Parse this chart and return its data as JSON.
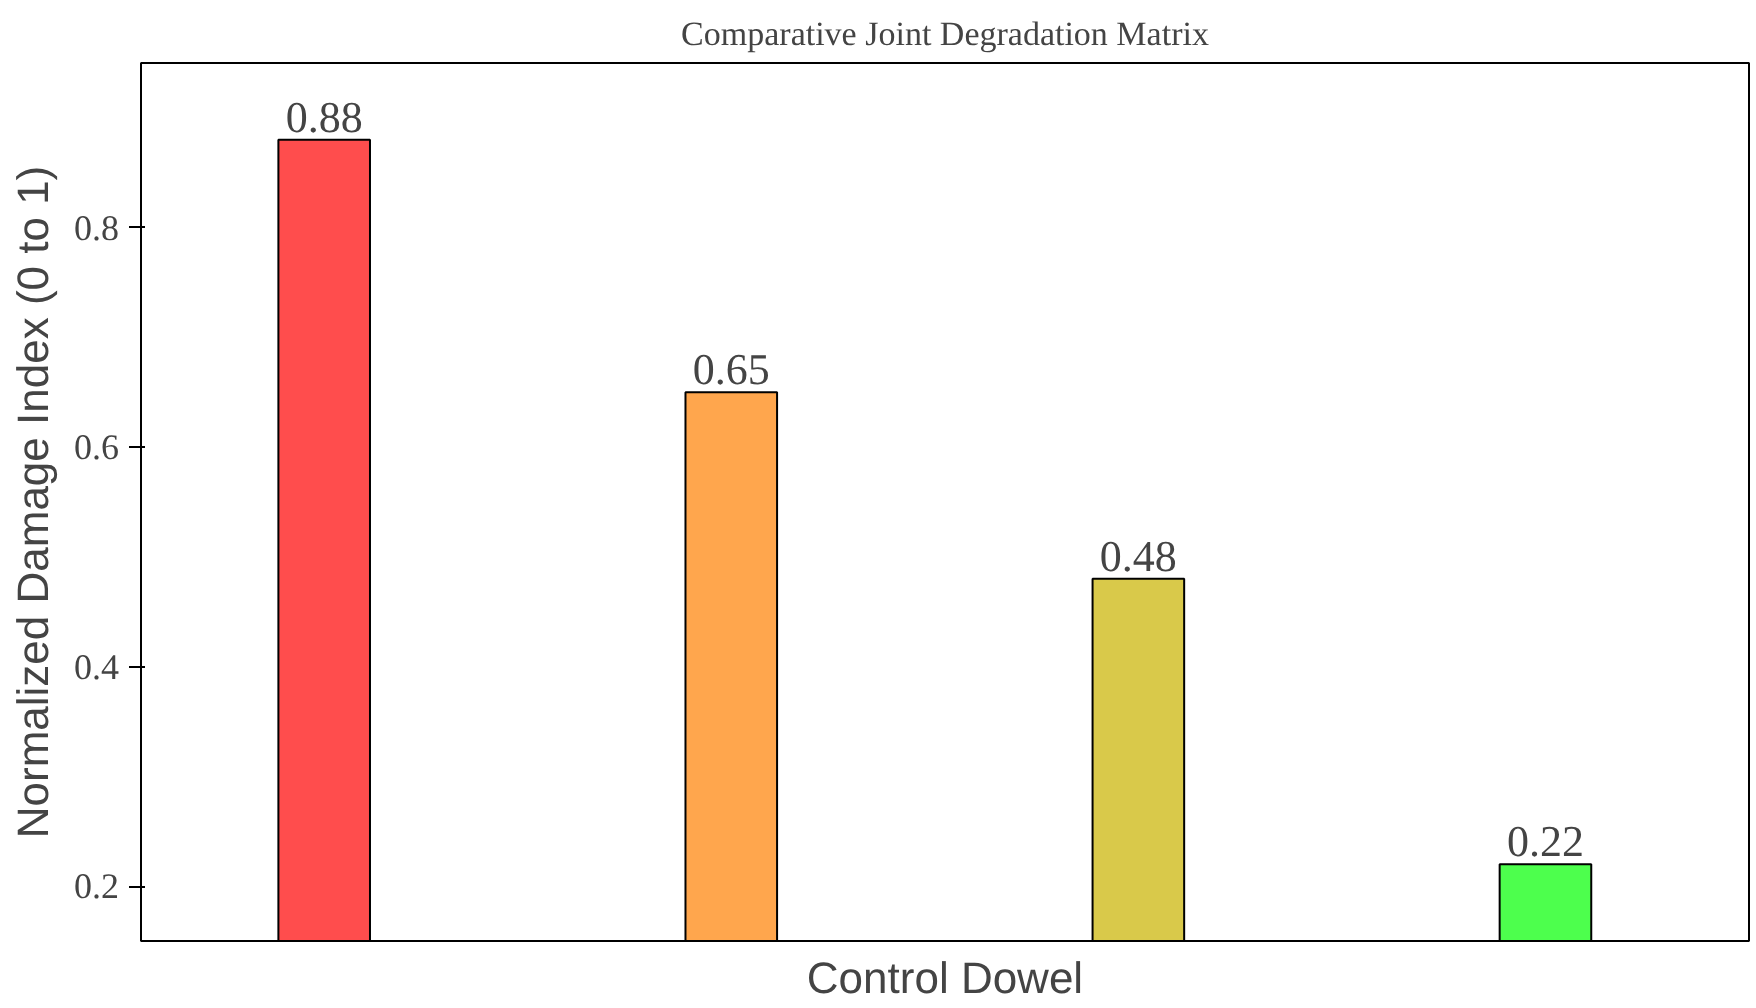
{
  "chart_data": {
    "type": "bar",
    "title": "Comparative Joint Degradation Matrix",
    "xlabel": "Control Dowel",
    "ylabel": "Normalized Damage Index (0 to 1)",
    "categories": [
      null,
      null,
      null,
      null
    ],
    "values": [
      0.88,
      0.65,
      0.48,
      0.22
    ],
    "colors": [
      "#ff4d4d",
      "#ffa64d",
      "#d9c94a",
      "#4dff4d"
    ],
    "ylim": [
      0.15,
      0.95
    ],
    "yticks": [
      0.2,
      0.4,
      0.6,
      0.8
    ],
    "data_labels": true,
    "grid": false
  }
}
